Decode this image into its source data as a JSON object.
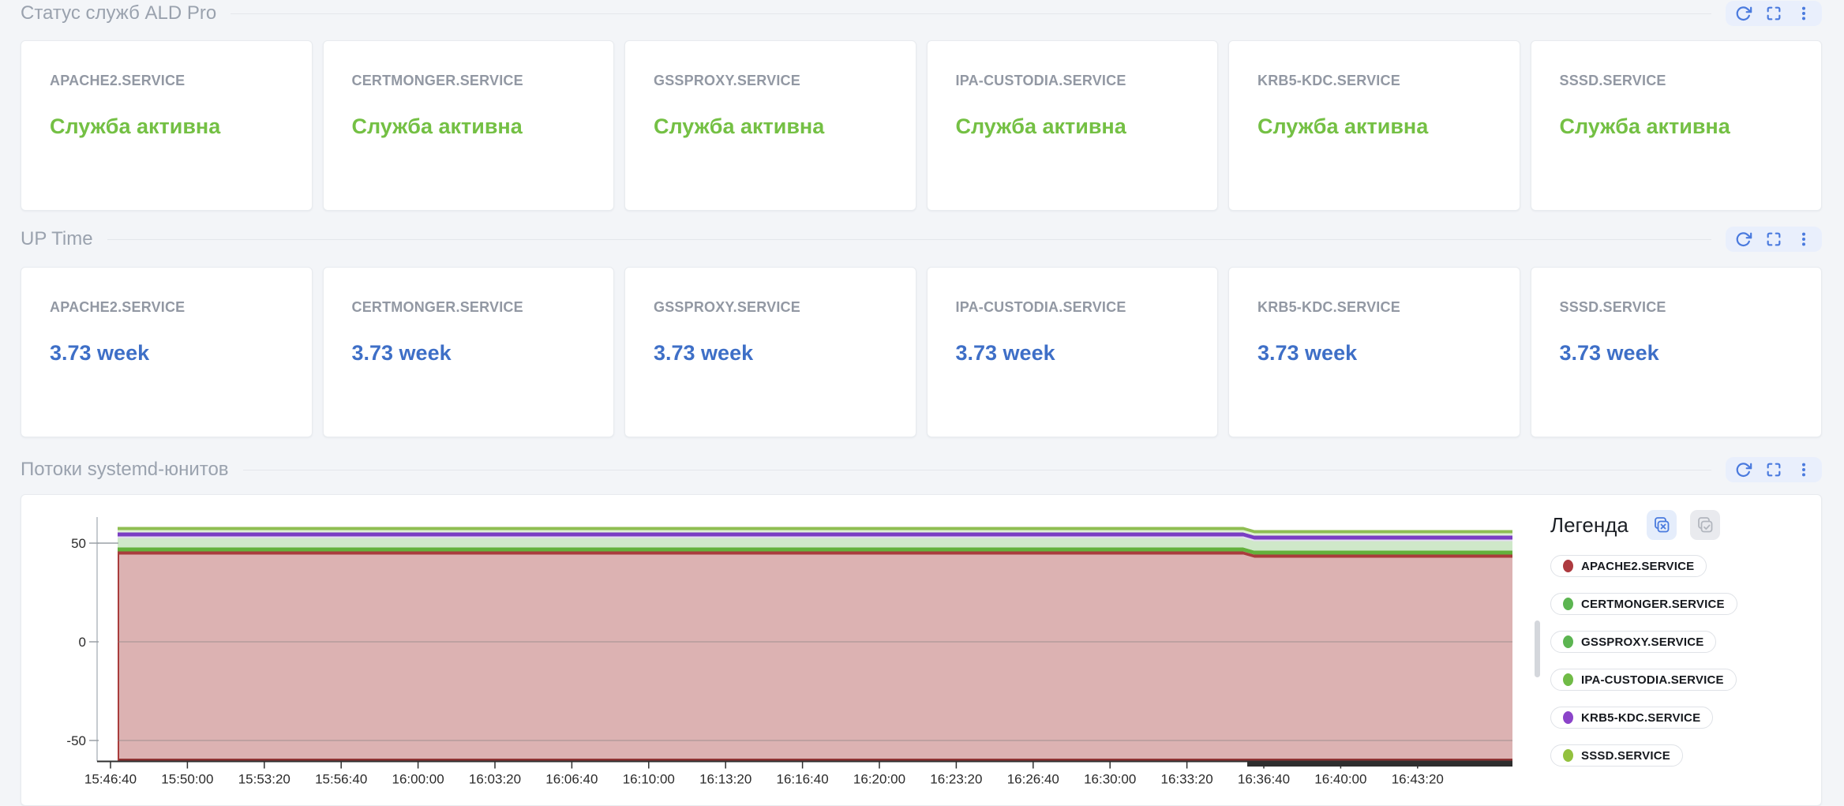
{
  "sections": {
    "status": {
      "title": "Статус служб ALD Pro"
    },
    "uptime": {
      "title": "UP Time"
    },
    "flows": {
      "title": "Потоки systemd-юнитов"
    }
  },
  "toolbar": {
    "buttons": [
      "refresh",
      "fullscreen",
      "kebab-menu"
    ]
  },
  "services": [
    "APACHE2.SERVICE",
    "CERTMONGER.SERVICE",
    "GSSPROXY.SERVICE",
    "IPA-CUSTODIA.SERVICE",
    "KRB5-KDC.SERVICE",
    "SSSD.SERVICE"
  ],
  "status_cards": [
    {
      "title": "APACHE2.SERVICE",
      "value": "Служба активна"
    },
    {
      "title": "CERTMONGER.SERVICE",
      "value": "Служба активна"
    },
    {
      "title": "GSSPROXY.SERVICE",
      "value": "Служба активна"
    },
    {
      "title": "IPA-CUSTODIA.SERVICE",
      "value": "Служба активна"
    },
    {
      "title": "KRB5-KDC.SERVICE",
      "value": "Служба активна"
    },
    {
      "title": "SSSD.SERVICE",
      "value": "Служба активна"
    }
  ],
  "uptime_cards": [
    {
      "title": "APACHE2.SERVICE",
      "value": "3.73 week"
    },
    {
      "title": "CERTMONGER.SERVICE",
      "value": "3.73 week"
    },
    {
      "title": "GSSPROXY.SERVICE",
      "value": "3.73 week"
    },
    {
      "title": "IPA-CUSTODIA.SERVICE",
      "value": "3.73 week"
    },
    {
      "title": "KRB5-KDC.SERVICE",
      "value": "3.73 week"
    },
    {
      "title": "SSSD.SERVICE",
      "value": "3.73 week"
    }
  ],
  "legend": {
    "title": "Легенда",
    "actions": [
      "deselect-all",
      "select-all"
    ],
    "items": [
      {
        "label": "APACHE2.SERVICE",
        "color": "#ad3a3f"
      },
      {
        "label": "CERTMONGER.SERVICE",
        "color": "#5cb551"
      },
      {
        "label": "GSSPROXY.SERVICE",
        "color": "#5cb551"
      },
      {
        "label": "IPA-CUSTODIA.SERVICE",
        "color": "#70bb46"
      },
      {
        "label": "KRB5-KDC.SERVICE",
        "color": "#8b44c9"
      },
      {
        "label": "SSSD.SERVICE",
        "color": "#93c13e"
      }
    ]
  },
  "colors": {
    "page_bg": "#f3f5f8",
    "accent_blue": "#4a7ade",
    "toolbar_bg": "#e9effc",
    "status_green": "#74c044",
    "uptime_blue": "#3e6fc7",
    "card_title_gray": "#9298a3",
    "section_title_gray": "#9aa2ae"
  },
  "chart_data": {
    "type": "area",
    "variant": "stacked-streamgraph",
    "title": "Потоки systemd-юнитов",
    "xlabel": "",
    "ylabel": "",
    "x_tick_labels": [
      "15:46:40",
      "15:50:00",
      "15:53:20",
      "15:56:40",
      "16:00:00",
      "16:03:20",
      "16:06:40",
      "16:10:00",
      "16:13:20",
      "16:16:40",
      "16:20:00",
      "16:23:20",
      "16:26:40",
      "16:30:00",
      "16:33:20",
      "16:36:40",
      "16:40:00",
      "16:43:20"
    ],
    "y_ticks": [
      50,
      0,
      -50
    ],
    "ylim": [
      -65,
      62
    ],
    "grid_y_values": [
      0,
      -50
    ],
    "grid": true,
    "legend_position": "right",
    "step_down": {
      "at_x_fraction": 0.811,
      "near_label": "16:36:40",
      "drop_units": 1.6
    },
    "series": [
      {
        "name": "APACHE2.SERVICE",
        "line_color": "#a93c3c",
        "fill_color": "#dcb2b2",
        "threads_before_step": 104,
        "threads_after_step": 102
      },
      {
        "name": "CERTMONGER.SERVICE",
        "line_color": "#63b13c",
        "threads": 2
      },
      {
        "name": "GSSPROXY.SERVICE",
        "line_color": "#cfe8c9",
        "threads": 5
      },
      {
        "name": "IPA-CUSTODIA.SERVICE",
        "line_color": "#e4ddf1",
        "threads": 1
      },
      {
        "name": "KRB5-KDC.SERVICE",
        "line_color": "#7a3ec3",
        "threads": 2
      },
      {
        "name": "SSSD.SERVICE",
        "line_color": "#8fbe52",
        "threads": 3
      }
    ],
    "render_layers": [
      {
        "name": "apache2-area",
        "color": "#dcb2b2",
        "top": [
          44.2,
          42.6
        ],
        "bottom": [
          -59.2,
          -59.2
        ]
      },
      {
        "name": "apache2-top-line",
        "color": "#a93c3c",
        "top": [
          45.8,
          44.2
        ],
        "bottom": [
          44.2,
          42.6
        ]
      },
      {
        "name": "certmonger-line",
        "color": "#63b13c",
        "top": [
          47.8,
          46.2
        ],
        "bottom": [
          45.8,
          44.2
        ]
      },
      {
        "name": "gssproxy-band",
        "color": "#cfe8c9",
        "top": [
          52.6,
          51.0
        ],
        "bottom": [
          47.8,
          46.2
        ]
      },
      {
        "name": "ipa-custodia-band",
        "color": "#e4ddf1",
        "top": [
          53.4,
          51.8
        ],
        "bottom": [
          52.6,
          51.0
        ]
      },
      {
        "name": "krb5-kdc-line",
        "color": "#7a3ec3",
        "top": [
          55.4,
          53.8
        ],
        "bottom": [
          53.4,
          51.8
        ]
      },
      {
        "name": "sssd-inner-band",
        "color": "#dff0d5",
        "top": [
          56.6,
          55.0
        ],
        "bottom": [
          55.4,
          53.8
        ]
      },
      {
        "name": "sssd-top-line",
        "color": "#8fbe52",
        "top": [
          58.2,
          56.6
        ],
        "bottom": [
          56.6,
          55.0
        ]
      },
      {
        "name": "apache2-bottom-line",
        "color": "#8e3232",
        "top": [
          -59.2,
          -59.2
        ],
        "bottom": [
          -60.6,
          -60.6
        ]
      },
      {
        "name": "dark-baseline-bar",
        "color": "#2e2e2e",
        "top": [
          -60.4,
          -60.4
        ],
        "bottom": [
          -63.2,
          -63.2
        ],
        "start": "step"
      }
    ]
  }
}
